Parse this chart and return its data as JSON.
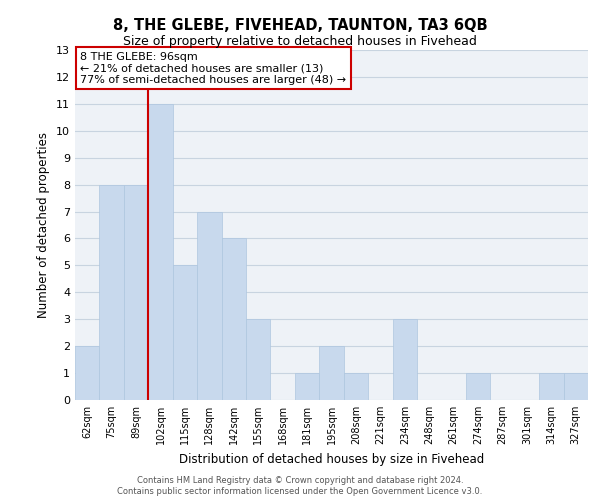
{
  "title_line1": "8, THE GLEBE, FIVEHEAD, TAUNTON, TA3 6QB",
  "title_line2": "Size of property relative to detached houses in Fivehead",
  "xlabel": "Distribution of detached houses by size in Fivehead",
  "ylabel": "Number of detached properties",
  "categories": [
    "62sqm",
    "75sqm",
    "89sqm",
    "102sqm",
    "115sqm",
    "128sqm",
    "142sqm",
    "155sqm",
    "168sqm",
    "181sqm",
    "195sqm",
    "208sqm",
    "221sqm",
    "234sqm",
    "248sqm",
    "261sqm",
    "274sqm",
    "287sqm",
    "301sqm",
    "314sqm",
    "327sqm"
  ],
  "values": [
    2,
    8,
    8,
    11,
    5,
    7,
    6,
    3,
    0,
    1,
    2,
    1,
    0,
    3,
    0,
    0,
    1,
    0,
    0,
    1,
    1
  ],
  "bar_color": "#c8d9ed",
  "bar_edge_color": "#aec6df",
  "highlight_line_color": "#cc0000",
  "annotation_text": "8 THE GLEBE: 96sqm\n← 21% of detached houses are smaller (13)\n77% of semi-detached houses are larger (48) →",
  "annotation_box_color": "#ffffff",
  "annotation_box_edge": "#cc0000",
  "ylim": [
    0,
    13
  ],
  "yticks": [
    0,
    1,
    2,
    3,
    4,
    5,
    6,
    7,
    8,
    9,
    10,
    11,
    12,
    13
  ],
  "grid_color": "#c8d4e0",
  "bg_color": "#eef2f7",
  "footer_line1": "Contains HM Land Registry data © Crown copyright and database right 2024.",
  "footer_line2": "Contains public sector information licensed under the Open Government Licence v3.0."
}
